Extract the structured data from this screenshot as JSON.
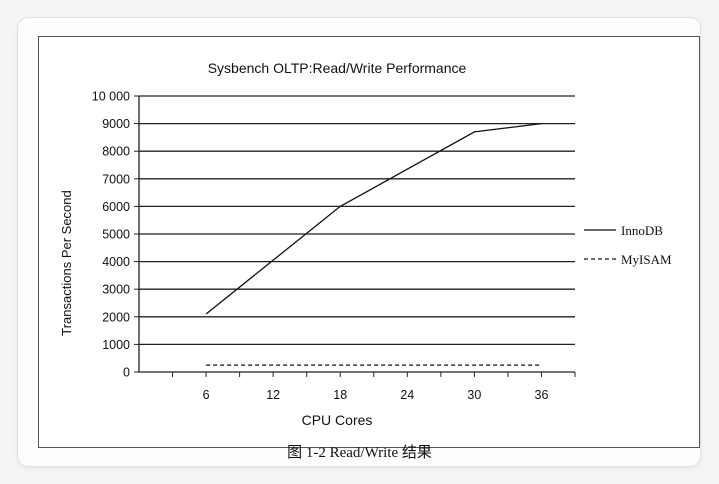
{
  "chart_data": {
    "type": "line",
    "title": "Sysbench OLTP:Read/Write Performance",
    "xlabel": "CPU Cores",
    "ylabel": "Transactions Per Second",
    "x_ticks": [
      6,
      12,
      18,
      24,
      30,
      36
    ],
    "xlim": [
      0,
      39
    ],
    "y_ticks": [
      0,
      1000,
      2000,
      3000,
      4000,
      5000,
      6000,
      7000,
      8000,
      9000,
      10000
    ],
    "y_tick_labels": [
      "0",
      "1000",
      "2000",
      "3000",
      "4000",
      "5000",
      "6000",
      "7000",
      "8000",
      "9000",
      "10 000"
    ],
    "ylim": [
      0,
      10000
    ],
    "grid": "horizontal",
    "legend_position": "right",
    "series": [
      {
        "name": "InnoDB",
        "style": "solid",
        "x": [
          6,
          18,
          30,
          36
        ],
        "y": [
          2100,
          6000,
          8700,
          9000
        ]
      },
      {
        "name": "MyISAM",
        "style": "dashed",
        "x": [
          6,
          36
        ],
        "y": [
          250,
          250
        ]
      }
    ]
  },
  "caption": "图 1-2    Read/Write 结果"
}
